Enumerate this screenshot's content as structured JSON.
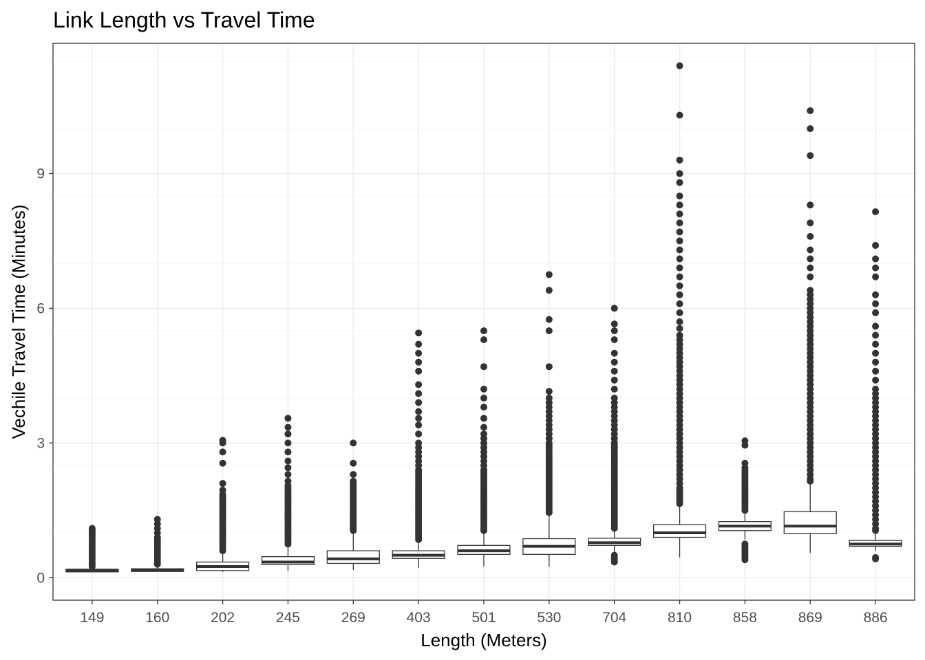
{
  "chart_data": {
    "type": "box",
    "title": "Link Length vs Travel Time",
    "xlabel": "Length (Meters)",
    "ylabel": "Vechile Travel Time (Minutes)",
    "ylim": [
      -0.5,
      11.9
    ],
    "yticks": [
      0,
      3,
      6,
      9
    ],
    "grid": true,
    "categories": [
      "149",
      "160",
      "202",
      "245",
      "269",
      "403",
      "501",
      "530",
      "704",
      "810",
      "858",
      "869",
      "886"
    ],
    "boxes": [
      {
        "category": "149",
        "whisker_low": 0.12,
        "q1": 0.13,
        "median": 0.16,
        "q3": 0.19,
        "whisker_high": 0.22,
        "outliers": [
          0.25,
          0.3,
          0.35,
          0.4,
          0.45,
          0.5,
          0.55,
          0.6,
          0.65,
          0.7,
          0.75,
          0.8,
          0.85,
          0.9,
          0.95,
          1.0,
          1.05,
          1.1
        ]
      },
      {
        "category": "160",
        "whisker_low": 0.13,
        "q1": 0.14,
        "median": 0.17,
        "q3": 0.2,
        "whisker_high": 0.25,
        "outliers": [
          0.3,
          0.35,
          0.4,
          0.45,
          0.5,
          0.55,
          0.6,
          0.65,
          0.7,
          0.75,
          0.8,
          0.85,
          0.9,
          1.0,
          1.1,
          1.2,
          1.3
        ]
      },
      {
        "category": "202",
        "whisker_low": 0.13,
        "q1": 0.16,
        "median": 0.25,
        "q3": 0.35,
        "whisker_high": 0.55,
        "outliers": [
          0.6,
          0.65,
          0.7,
          0.75,
          0.8,
          0.85,
          0.9,
          0.95,
          1.0,
          1.05,
          1.1,
          1.15,
          1.2,
          1.25,
          1.3,
          1.35,
          1.4,
          1.45,
          1.5,
          1.55,
          1.6,
          1.65,
          1.7,
          1.75,
          1.8,
          1.85,
          1.95,
          2.1,
          2.55,
          2.8,
          3.0,
          3.06
        ]
      },
      {
        "category": "245",
        "whisker_low": 0.15,
        "q1": 0.29,
        "median": 0.35,
        "q3": 0.47,
        "whisker_high": 0.7,
        "outliers": [
          0.75,
          0.8,
          0.85,
          0.9,
          0.95,
          1.0,
          1.05,
          1.1,
          1.15,
          1.2,
          1.25,
          1.3,
          1.35,
          1.4,
          1.45,
          1.5,
          1.55,
          1.6,
          1.65,
          1.7,
          1.75,
          1.8,
          1.85,
          1.9,
          1.95,
          2.0,
          2.05,
          2.15,
          2.3,
          2.45,
          2.6,
          2.8,
          3.0,
          3.2,
          3.35,
          3.55
        ]
      },
      {
        "category": "269",
        "whisker_low": 0.17,
        "q1": 0.32,
        "median": 0.42,
        "q3": 0.6,
        "whisker_high": 1.0,
        "outliers": [
          1.05,
          1.1,
          1.15,
          1.2,
          1.25,
          1.3,
          1.35,
          1.4,
          1.45,
          1.5,
          1.55,
          1.6,
          1.65,
          1.7,
          1.75,
          1.8,
          1.85,
          1.9,
          1.95,
          2.0,
          2.05,
          2.1,
          2.15,
          2.3,
          2.55,
          3.0
        ]
      },
      {
        "category": "403",
        "whisker_low": 0.22,
        "q1": 0.43,
        "median": 0.5,
        "q3": 0.6,
        "whisker_high": 0.78,
        "outliers": [
          0.85,
          0.9,
          0.95,
          1.0,
          1.05,
          1.1,
          1.15,
          1.2,
          1.25,
          1.3,
          1.35,
          1.4,
          1.45,
          1.5,
          1.55,
          1.6,
          1.65,
          1.7,
          1.75,
          1.8,
          1.85,
          1.9,
          1.95,
          2.0,
          2.05,
          2.1,
          2.15,
          2.2,
          2.25,
          2.3,
          2.35,
          2.4,
          2.5,
          2.6,
          2.7,
          2.8,
          2.9,
          3.0,
          3.2,
          3.4,
          3.55,
          3.7,
          3.9,
          4.1,
          4.3,
          4.6,
          4.8,
          5.0,
          5.2,
          5.45
        ]
      },
      {
        "category": "501",
        "whisker_low": 0.25,
        "q1": 0.52,
        "median": 0.6,
        "q3": 0.72,
        "whisker_high": 1.0,
        "outliers": [
          1.05,
          1.1,
          1.15,
          1.2,
          1.25,
          1.3,
          1.35,
          1.4,
          1.45,
          1.5,
          1.55,
          1.6,
          1.65,
          1.7,
          1.75,
          1.8,
          1.85,
          1.9,
          1.95,
          2.0,
          2.05,
          2.1,
          2.15,
          2.2,
          2.25,
          2.3,
          2.35,
          2.4,
          2.5,
          2.6,
          2.7,
          2.8,
          2.9,
          3.0,
          3.1,
          3.2,
          3.35,
          3.55,
          3.8,
          4.0,
          4.2,
          4.7,
          5.3,
          5.5
        ]
      },
      {
        "category": "530",
        "whisker_low": 0.25,
        "q1": 0.52,
        "median": 0.7,
        "q3": 0.87,
        "whisker_high": 1.4,
        "outliers": [
          1.45,
          1.5,
          1.55,
          1.6,
          1.65,
          1.7,
          1.75,
          1.8,
          1.85,
          1.9,
          1.95,
          2.0,
          2.05,
          2.1,
          2.15,
          2.2,
          2.25,
          2.3,
          2.35,
          2.4,
          2.45,
          2.5,
          2.55,
          2.6,
          2.65,
          2.7,
          2.75,
          2.8,
          2.85,
          2.9,
          2.95,
          3.0,
          3.1,
          3.2,
          3.3,
          3.4,
          3.5,
          3.6,
          3.7,
          3.8,
          3.9,
          4.0,
          4.15,
          4.7,
          5.5,
          5.75,
          6.4,
          6.75
        ]
      },
      {
        "category": "704",
        "whisker_low": 0.4,
        "q1": 0.72,
        "median": 0.78,
        "q3": 0.88,
        "whisker_high": 1.05,
        "outliers": [
          0.35,
          0.4,
          0.45,
          0.5,
          1.1,
          1.15,
          1.2,
          1.25,
          1.3,
          1.35,
          1.4,
          1.45,
          1.5,
          1.55,
          1.6,
          1.65,
          1.7,
          1.75,
          1.8,
          1.85,
          1.9,
          1.95,
          2.0,
          2.05,
          2.1,
          2.15,
          2.2,
          2.25,
          2.3,
          2.35,
          2.4,
          2.45,
          2.5,
          2.55,
          2.6,
          2.65,
          2.7,
          2.75,
          2.8,
          2.85,
          2.9,
          2.95,
          3.0,
          3.1,
          3.2,
          3.3,
          3.4,
          3.5,
          3.6,
          3.7,
          3.8,
          3.9,
          4.0,
          4.2,
          4.4,
          4.6,
          4.8,
          5.0,
          5.3,
          5.5,
          5.65,
          6.0
        ]
      },
      {
        "category": "810",
        "whisker_low": 0.45,
        "q1": 0.9,
        "median": 1.0,
        "q3": 1.18,
        "whisker_high": 1.6,
        "outliers": [
          1.65,
          1.7,
          1.75,
          1.8,
          1.85,
          1.9,
          1.95,
          2.0,
          2.1,
          2.2,
          2.3,
          2.4,
          2.5,
          2.6,
          2.7,
          2.8,
          2.9,
          3.0,
          3.1,
          3.2,
          3.3,
          3.4,
          3.5,
          3.6,
          3.7,
          3.8,
          3.9,
          4.0,
          4.1,
          4.2,
          4.3,
          4.4,
          4.5,
          4.6,
          4.7,
          4.8,
          4.9,
          5.0,
          5.1,
          5.2,
          5.3,
          5.4,
          5.55,
          5.7,
          5.9,
          6.1,
          6.3,
          6.5,
          6.7,
          6.9,
          7.1,
          7.3,
          7.5,
          7.7,
          7.9,
          8.1,
          8.3,
          8.5,
          8.8,
          9.0,
          9.3,
          10.3,
          11.4
        ]
      },
      {
        "category": "858",
        "whisker_low": 0.85,
        "q1": 1.05,
        "median": 1.15,
        "q3": 1.25,
        "whisker_high": 1.45,
        "outliers": [
          0.4,
          0.45,
          0.5,
          0.55,
          0.6,
          0.65,
          0.7,
          0.75,
          1.5,
          1.55,
          1.6,
          1.65,
          1.7,
          1.75,
          1.8,
          1.85,
          1.9,
          1.95,
          2.0,
          2.05,
          2.1,
          2.15,
          2.2,
          2.25,
          2.3,
          2.35,
          2.4,
          2.45,
          2.55,
          2.95,
          3.05
        ]
      },
      {
        "category": "869",
        "whisker_low": 0.55,
        "q1": 0.98,
        "median": 1.15,
        "q3": 1.47,
        "whisker_high": 2.1,
        "outliers": [
          2.15,
          2.2,
          2.3,
          2.4,
          2.5,
          2.6,
          2.7,
          2.8,
          2.9,
          3.0,
          3.1,
          3.2,
          3.3,
          3.4,
          3.5,
          3.6,
          3.7,
          3.8,
          3.9,
          4.0,
          4.1,
          4.2,
          4.3,
          4.4,
          4.5,
          4.6,
          4.7,
          4.8,
          4.9,
          5.0,
          5.1,
          5.2,
          5.3,
          5.4,
          5.5,
          5.6,
          5.7,
          5.8,
          5.9,
          6.0,
          6.1,
          6.2,
          6.3,
          6.4,
          6.7,
          6.9,
          7.1,
          7.3,
          7.6,
          7.9,
          8.3,
          9.4,
          10.0,
          10.4
        ]
      },
      {
        "category": "886",
        "whisker_low": 0.6,
        "q1": 0.7,
        "median": 0.75,
        "q3": 0.83,
        "whisker_high": 1.0,
        "outliers": [
          0.42,
          0.45,
          1.05,
          1.1,
          1.2,
          1.3,
          1.4,
          1.5,
          1.6,
          1.7,
          1.8,
          1.9,
          2.0,
          2.1,
          2.2,
          2.3,
          2.4,
          2.5,
          2.6,
          2.7,
          2.8,
          2.9,
          3.0,
          3.1,
          3.2,
          3.3,
          3.4,
          3.5,
          3.6,
          3.7,
          3.8,
          3.9,
          4.0,
          4.1,
          4.2,
          4.4,
          4.6,
          4.8,
          5.0,
          5.2,
          5.4,
          5.6,
          5.9,
          6.1,
          6.3,
          6.7,
          6.9,
          7.1,
          7.4,
          8.15
        ]
      }
    ]
  }
}
